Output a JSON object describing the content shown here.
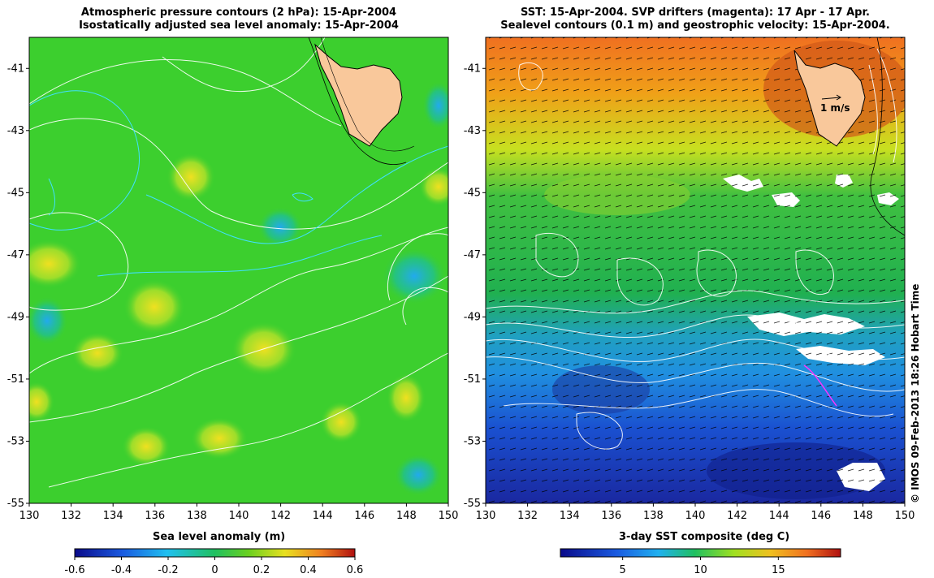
{
  "left_panel": {
    "title_line1": "Atmospheric pressure contours (2 hPa): 15-Apr-2004",
    "title_line2": "Isostatically adjusted sea level anomaly: 15-Apr-2004",
    "colorbar_label": "Sea level anomaly (m)",
    "colorbar_ticks": [
      "-0.6",
      "-0.4",
      "-0.2",
      "0",
      "0.2",
      "0.4",
      "0.6"
    ]
  },
  "right_panel": {
    "title_line1": "SST: 15-Apr-2004. SVP drifters (magenta): 17 Apr - 17 Apr.",
    "title_line2": "Sealevel contours (0.1 m) and geostrophic velocity: 15-Apr-2004.",
    "colorbar_label": "3-day SST composite (deg C)",
    "colorbar_ticks": [
      "5",
      "10",
      "15"
    ],
    "velocity_scale_label": "1 m/s"
  },
  "axes": {
    "lat_ticks": [
      "-41",
      "-43",
      "-45",
      "-47",
      "-49",
      "-51",
      "-53",
      "-55"
    ],
    "lon_ticks": [
      "130",
      "132",
      "134",
      "136",
      "138",
      "140",
      "142",
      "144",
      "146",
      "148",
      "150"
    ]
  },
  "credit": "© IMOS 09-Feb-2013 18:26 Hobart Time",
  "colors": {
    "land": "#f9c89b",
    "sla_background": "#3ccf2e",
    "sst_warm": "#f0a020",
    "sst_mid": "#2fc04a",
    "sst_cold": "#1a4fd0",
    "drifter": "#ff33ff"
  }
}
